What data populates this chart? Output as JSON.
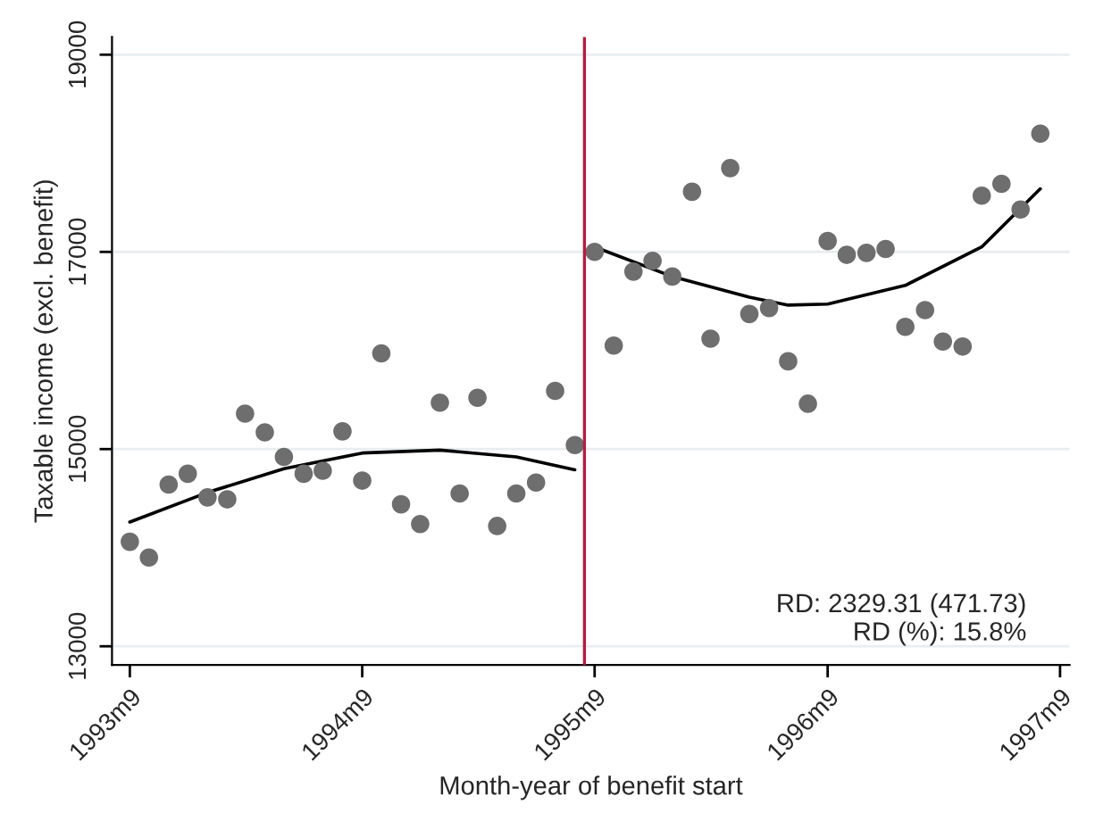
{
  "chart_data": {
    "type": "scatter",
    "xlabel": "Month-year of benefit start",
    "ylabel": "Taxable income (excl. benefit)",
    "xlim": [
      "1993-08-04",
      "1997-09-16"
    ],
    "ylim": [
      12810,
      19180
    ],
    "xticks": [
      {
        "value": "1993-09",
        "label": "1993m9"
      },
      {
        "value": "1994-09",
        "label": "1994m9"
      },
      {
        "value": "1995-09",
        "label": "1995m9"
      },
      {
        "value": "1996-09",
        "label": "1996m9"
      },
      {
        "value": "1997-09",
        "label": "1997m9"
      }
    ],
    "yticks": [
      13000,
      15000,
      17000,
      19000
    ],
    "grid": "y",
    "marker": "circle",
    "series": [
      {
        "color": "#6e6e6e",
        "x": [
          "1993-09",
          "1993-10",
          "1993-11",
          "1993-12",
          "1994-01",
          "1994-02",
          "1994-03",
          "1994-04",
          "1994-05",
          "1994-06",
          "1994-07",
          "1994-08",
          "1994-09",
          "1994-10",
          "1994-11",
          "1994-12",
          "1995-01",
          "1995-02",
          "1995-03",
          "1995-04",
          "1995-05",
          "1995-06",
          "1995-07",
          "1995-08",
          "1995-09",
          "1995-10",
          "1995-11",
          "1995-12",
          "1996-01",
          "1996-02",
          "1996-03",
          "1996-04",
          "1996-05",
          "1996-06",
          "1996-07",
          "1996-08",
          "1996-09",
          "1996-10",
          "1996-11",
          "1996-12",
          "1997-01",
          "1997-02",
          "1997-03",
          "1997-04",
          "1997-05",
          "1997-06",
          "1997-07",
          "1997-08"
        ],
        "values": [
          14060,
          13900,
          14640,
          14750,
          14510,
          14490,
          15360,
          15170,
          14920,
          14750,
          14780,
          15180,
          14680,
          15970,
          14440,
          14240,
          15470,
          14550,
          15520,
          14220,
          14550,
          14660,
          15590,
          15040,
          17000,
          16050,
          16800,
          16910,
          16750,
          17610,
          16120,
          17850,
          16370,
          16430,
          15890,
          15460,
          17110,
          16970,
          16990,
          17030,
          16240,
          16410,
          16090,
          16040,
          17570,
          17690,
          17430,
          18200
        ]
      },
      {
        "type": "line",
        "color": "#000000",
        "marker": "none",
        "x": [
          "1993-09",
          "1994-01",
          "1994-05",
          "1994-09",
          "1995-01",
          "1995-05",
          "1995-08"
        ],
        "values": [
          14260,
          14560,
          14800,
          14960,
          14990,
          14920,
          14790
        ]
      },
      {
        "type": "line",
        "color": "#000000",
        "marker": "none",
        "x": [
          "1995-09",
          "1996-01",
          "1996-05",
          "1996-07",
          "1996-09",
          "1997-01",
          "1997-05",
          "1997-08"
        ],
        "values": [
          17050,
          16750,
          16540,
          16460,
          16470,
          16660,
          17050,
          17640
        ]
      }
    ],
    "ref_lines": [
      {
        "axis": "x",
        "value": "1995-08-16",
        "color": "#d0103a"
      }
    ],
    "annotations": [
      "RD: 2329.31 (471.73)",
      "RD (%): 15.8%"
    ]
  }
}
